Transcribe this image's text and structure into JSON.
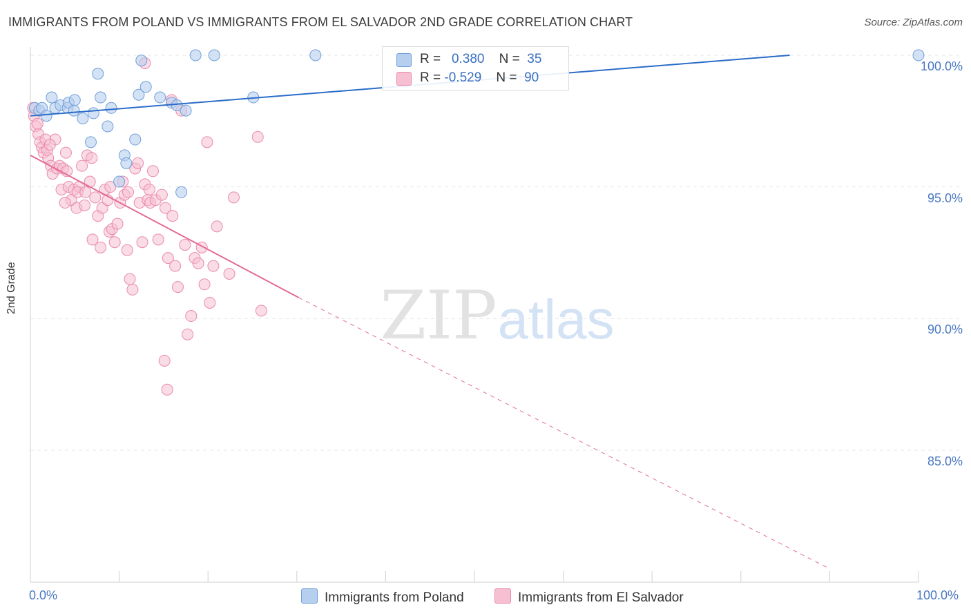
{
  "title": "IMMIGRANTS FROM POLAND VS IMMIGRANTS FROM EL SALVADOR 2ND GRADE CORRELATION CHART",
  "source": "Source: ZipAtlas.com",
  "watermark": {
    "zip": "ZIP",
    "atlas": "atlas"
  },
  "colors": {
    "poland": "#6f9fd8",
    "poland_fill": "#b7cfee",
    "poland_line": "#2a6cc8",
    "salvador": "#e98aa9",
    "salvador_fill": "#f6c0d2",
    "salvador_line": "#e46a95"
  },
  "legend": {
    "poland": {
      "r_label": "R =",
      "r_value": "0.380",
      "n_label": "N =",
      "n_value": "35"
    },
    "salvador": {
      "r_label": "R =",
      "r_value": "-0.529",
      "n_label": "N =",
      "n_value": "90"
    }
  },
  "chart_data": {
    "type": "scatter",
    "title": "IMMIGRANTS FROM POLAND VS IMMIGRANTS FROM EL SALVADOR 2ND GRADE CORRELATION CHART",
    "xlabel": "",
    "ylabel": "2nd Grade",
    "xlim": [
      0,
      100
    ],
    "ylim": [
      80.5,
      100.8
    ],
    "x_tick_labels": [
      "0.0%",
      "100.0%"
    ],
    "y_ticks": [
      85,
      90,
      95,
      100
    ],
    "y_tick_labels": [
      "85.0%",
      "90.0%",
      "95.0%",
      "100.0%"
    ],
    "grid": true,
    "series": [
      {
        "name": "Immigrants from Poland",
        "r": 0.38,
        "n": 35,
        "trend": {
          "x": [
            0,
            85.5
          ],
          "y": [
            97.7,
            100.0
          ],
          "dashed_to": null
        },
        "points": [
          [
            0.5,
            98.0
          ],
          [
            1.0,
            97.9
          ],
          [
            1.3,
            98.0
          ],
          [
            1.8,
            97.7
          ],
          [
            2.4,
            98.4
          ],
          [
            2.8,
            98.0
          ],
          [
            3.4,
            98.1
          ],
          [
            4.2,
            98.0
          ],
          [
            4.3,
            98.2
          ],
          [
            4.9,
            97.9
          ],
          [
            5.0,
            98.3
          ],
          [
            5.9,
            97.6
          ],
          [
            6.8,
            96.7
          ],
          [
            7.1,
            97.8
          ],
          [
            7.6,
            99.3
          ],
          [
            7.9,
            98.4
          ],
          [
            8.7,
            97.3
          ],
          [
            9.1,
            98.0
          ],
          [
            10.0,
            95.2
          ],
          [
            10.6,
            96.2
          ],
          [
            10.8,
            95.9
          ],
          [
            11.8,
            96.8
          ],
          [
            12.2,
            98.5
          ],
          [
            12.5,
            99.8
          ],
          [
            13.0,
            98.8
          ],
          [
            14.6,
            98.4
          ],
          [
            15.9,
            98.2
          ],
          [
            16.5,
            98.1
          ],
          [
            17.5,
            97.9
          ],
          [
            17.0,
            94.8
          ],
          [
            18.6,
            100.0
          ],
          [
            20.7,
            100.0
          ],
          [
            25.1,
            98.4
          ],
          [
            32.1,
            100.0
          ],
          [
            100.0,
            100.0
          ]
        ]
      },
      {
        "name": "Immigrants from El Salvador",
        "r": -0.529,
        "n": 90,
        "trend": {
          "x": [
            0,
            30.2
          ],
          "y": [
            96.2,
            90.8
          ],
          "dashed_to": [
            90,
            80.5
          ]
        },
        "points": [
          [
            0.3,
            98.0
          ],
          [
            0.4,
            97.7
          ],
          [
            0.6,
            97.3
          ],
          [
            0.9,
            97.0
          ],
          [
            1.1,
            96.7
          ],
          [
            1.3,
            96.5
          ],
          [
            1.5,
            96.3
          ],
          [
            1.7,
            96.8
          ],
          [
            2.0,
            96.1
          ],
          [
            2.3,
            95.8
          ],
          [
            2.5,
            95.5
          ],
          [
            2.8,
            96.8
          ],
          [
            3.0,
            95.7
          ],
          [
            3.3,
            95.8
          ],
          [
            3.5,
            94.9
          ],
          [
            3.7,
            95.7
          ],
          [
            4.0,
            96.3
          ],
          [
            4.3,
            95.0
          ],
          [
            4.6,
            94.5
          ],
          [
            4.9,
            94.9
          ],
          [
            5.2,
            94.2
          ],
          [
            5.5,
            95.0
          ],
          [
            5.8,
            95.8
          ],
          [
            6.1,
            94.3
          ],
          [
            6.4,
            96.2
          ],
          [
            6.7,
            95.2
          ],
          [
            7.0,
            93.0
          ],
          [
            7.3,
            94.6
          ],
          [
            7.6,
            93.9
          ],
          [
            7.9,
            92.7
          ],
          [
            8.1,
            94.2
          ],
          [
            8.4,
            94.9
          ],
          [
            8.7,
            94.5
          ],
          [
            8.9,
            93.3
          ],
          [
            9.2,
            93.4
          ],
          [
            9.5,
            92.9
          ],
          [
            9.8,
            93.6
          ],
          [
            10.1,
            94.4
          ],
          [
            10.4,
            95.2
          ],
          [
            10.6,
            94.7
          ],
          [
            10.9,
            92.6
          ],
          [
            11.2,
            91.5
          ],
          [
            11.5,
            91.1
          ],
          [
            11.8,
            95.7
          ],
          [
            12.1,
            95.9
          ],
          [
            12.3,
            94.4
          ],
          [
            12.6,
            92.9
          ],
          [
            12.9,
            95.1
          ],
          [
            13.2,
            94.5
          ],
          [
            13.5,
            94.4
          ],
          [
            13.8,
            95.6
          ],
          [
            14.1,
            94.5
          ],
          [
            14.4,
            93.0
          ],
          [
            14.8,
            94.7
          ],
          [
            15.2,
            94.2
          ],
          [
            15.5,
            92.3
          ],
          [
            15.9,
            98.3
          ],
          [
            16.3,
            92.0
          ],
          [
            16.6,
            91.2
          ],
          [
            17.0,
            97.9
          ],
          [
            17.4,
            92.8
          ],
          [
            17.7,
            89.4
          ],
          [
            18.1,
            90.1
          ],
          [
            18.5,
            92.3
          ],
          [
            18.9,
            92.1
          ],
          [
            19.3,
            92.7
          ],
          [
            19.6,
            91.3
          ],
          [
            19.9,
            96.7
          ],
          [
            20.2,
            90.6
          ],
          [
            20.6,
            92.0
          ],
          [
            21.0,
            93.5
          ],
          [
            22.4,
            91.7
          ],
          [
            22.9,
            94.6
          ],
          [
            25.6,
            96.9
          ],
          [
            26.0,
            90.3
          ],
          [
            12.9,
            99.7
          ],
          [
            15.1,
            88.4
          ],
          [
            15.4,
            87.3
          ],
          [
            5.3,
            94.8
          ],
          [
            6.9,
            96.1
          ],
          [
            3.9,
            94.4
          ],
          [
            9.0,
            95.0
          ],
          [
            11.0,
            94.8
          ],
          [
            1.9,
            96.4
          ],
          [
            2.2,
            96.6
          ],
          [
            0.8,
            97.4
          ],
          [
            4.1,
            95.6
          ],
          [
            6.2,
            94.8
          ],
          [
            13.4,
            94.9
          ],
          [
            16.0,
            93.9
          ]
        ]
      }
    ]
  }
}
